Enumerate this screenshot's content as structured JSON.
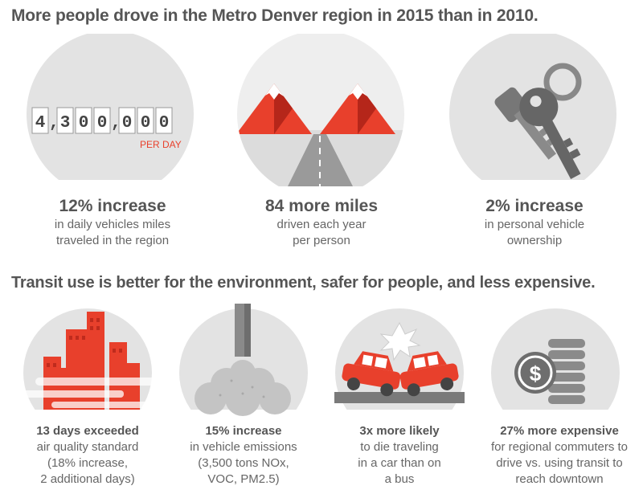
{
  "heading_top": "More people drove in the Metro Denver region in 2015 than in 2010.",
  "heading_bottom": "Transit use is better for the environment, safer for people, and less expensive.",
  "odometer": {
    "digits": [
      "4",
      ",",
      "3",
      "0",
      "0",
      ",",
      "0",
      "0",
      "0"
    ],
    "unit": "PER DAY"
  },
  "top_stats": [
    {
      "big": "12% increase",
      "line1": "in daily vehicles miles",
      "line2": "traveled in the region",
      "icon": "odometer-icon"
    },
    {
      "big": "84 more miles",
      "line1": "driven each year",
      "line2": "per person",
      "icon": "mountain-road-icon"
    },
    {
      "big": "2% increase",
      "line1": "in personal vehicle",
      "line2": "ownership",
      "icon": "car-keys-icon"
    }
  ],
  "bottom_stats": [
    {
      "big": "13 days exceeded",
      "lines": [
        "air quality standard",
        "(18% increase,",
        "2 additional days)"
      ],
      "icon": "smoggy-city-icon"
    },
    {
      "big": "15% increase",
      "lines": [
        "in vehicle emissions",
        "(3,500 tons NOx,",
        "VOC, PM2.5)"
      ],
      "icon": "exhaust-pipe-icon"
    },
    {
      "big": "3x more likely",
      "lines": [
        "to die traveling",
        "in a car than on",
        "a bus"
      ],
      "icon": "car-crash-icon"
    },
    {
      "big": "27% more expensive",
      "lines": [
        "for regional commuters to",
        "drive vs. using transit to",
        "reach downtown"
      ],
      "icon": "dollar-coins-icon"
    }
  ],
  "colors": {
    "red": "#e8402c",
    "dark_red": "#c0392b",
    "gray_circle": "#e3e3e3",
    "icon_gray": "#8a8a8a",
    "text": "#555555"
  }
}
